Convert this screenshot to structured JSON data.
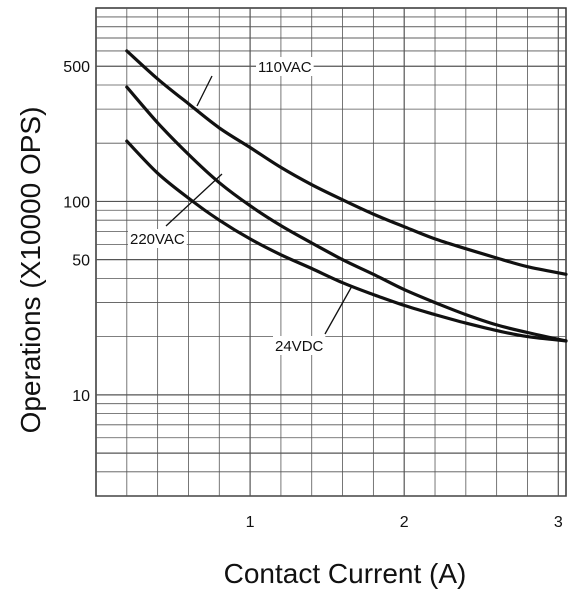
{
  "chart_data": {
    "type": "line",
    "title": "",
    "xlabel": "Contact Current (A)",
    "ylabel": "Operations (X10000 OPS)",
    "x_scale": "linear",
    "y_scale": "log",
    "xlim": [
      0.0,
      3.05
    ],
    "ylim": [
      3,
      1000
    ],
    "xticks": [
      1,
      2,
      3
    ],
    "xtick_labels": [
      "1",
      "2",
      "3"
    ],
    "yticks": [
      10,
      50,
      100,
      500
    ],
    "ytick_labels": [
      "10",
      "50",
      "100",
      "500"
    ],
    "grid": true,
    "series": [
      {
        "name": "110VAC",
        "x": [
          0.2,
          0.4,
          0.6,
          0.8,
          1.0,
          1.2,
          1.4,
          1.6,
          1.8,
          2.0,
          2.2,
          2.4,
          2.6,
          2.8,
          3.05
        ],
        "y": [
          600,
          430,
          320,
          240,
          190,
          150,
          122,
          102,
          86,
          74,
          64,
          57,
          51,
          46,
          42
        ]
      },
      {
        "name": "220VAC",
        "x": [
          0.2,
          0.4,
          0.6,
          0.8,
          1.0,
          1.2,
          1.4,
          1.6,
          1.8,
          2.0,
          2.2,
          2.4,
          2.6,
          2.8,
          3.05
        ],
        "y": [
          390,
          255,
          175,
          125,
          95,
          75,
          61,
          50,
          42,
          35,
          30,
          26,
          23,
          21,
          19
        ]
      },
      {
        "name": "24VDC",
        "x": [
          0.2,
          0.4,
          0.6,
          0.8,
          1.0,
          1.2,
          1.4,
          1.6,
          1.8,
          2.0,
          2.2,
          2.4,
          2.6,
          2.8,
          3.05
        ],
        "y": [
          205,
          140,
          104,
          80,
          64,
          53,
          45,
          38,
          33,
          29,
          26,
          23.5,
          21.5,
          20,
          19
        ]
      }
    ]
  }
}
